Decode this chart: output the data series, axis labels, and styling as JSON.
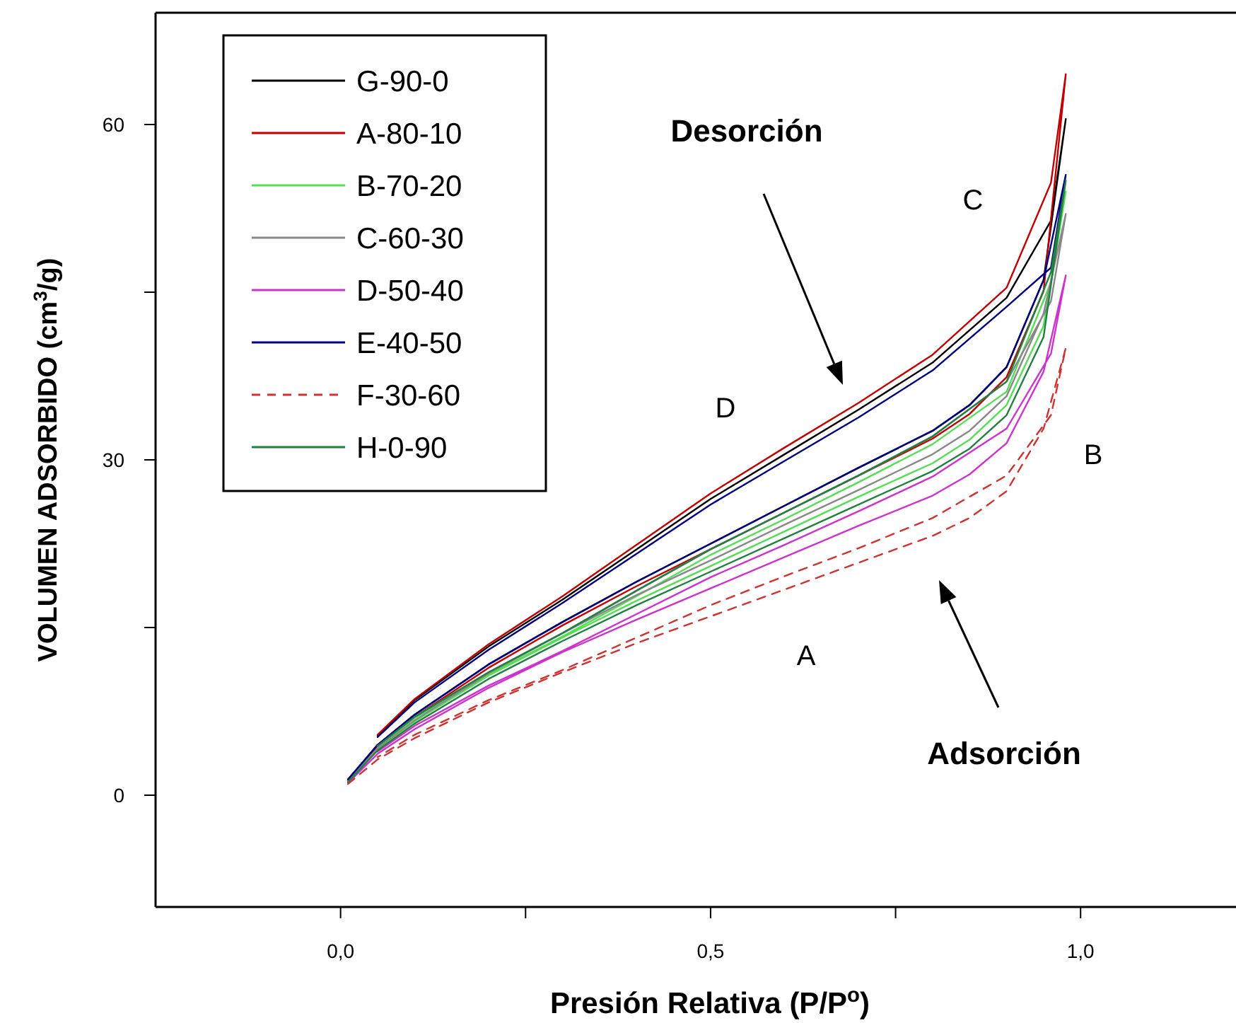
{
  "chart_data": {
    "type": "line",
    "xlabel": "Presión Relativa  (P/P$^{o}$)",
    "ylabel": "VOLUMEN ADSORBIDO (cm$^{3}$/g)",
    "xlim": [
      -0.25,
      1.21
    ],
    "ylim": [
      -10,
      70
    ],
    "xticks": [
      {
        "value": 0,
        "label": "0,0"
      },
      {
        "value": 0.25,
        "label": null
      },
      {
        "value": 0.5,
        "label": "0,5"
      },
      {
        "value": 0.75,
        "label": null
      },
      {
        "value": 1,
        "label": "1,0"
      }
    ],
    "yticks": [
      0,
      {
        "value": 15,
        "label": null
      },
      30,
      {
        "value": 45,
        "label": null
      },
      60
    ],
    "legend": "top left",
    "line_style": "solid",
    "x": [
      0.01,
      0.05,
      0.1,
      0.2,
      0.3,
      0.4,
      0.5,
      0.6,
      0.7,
      0.8,
      0.85,
      0.9,
      0.95,
      0.98,
      0.96,
      0.9,
      0.8,
      0.7,
      0.6,
      0.5,
      0.4,
      0.3,
      0.2,
      0.1,
      0.05
    ],
    "series": [
      {
        "name": "G-90-0",
        "color": "#000000",
        "values": [
          1.4,
          4.5,
          7.2,
          11.7,
          15.5,
          19.1,
          22.5,
          25.9,
          29.3,
          32.6,
          34.9,
          38.3,
          46.1,
          60.5,
          51.4,
          44.5,
          38.7,
          34.5,
          30.5,
          26.5,
          22,
          17.5,
          13.3,
          8.5,
          5.3
        ]
      },
      {
        "name": "A-80-10",
        "color": "#c00000",
        "values": [
          1.3,
          4.4,
          7,
          11.4,
          15.2,
          18.7,
          22,
          25.3,
          28.6,
          31.9,
          34.1,
          37.4,
          45.1,
          64.5,
          54.8,
          45.4,
          39.4,
          35.1,
          31.1,
          27,
          22.4,
          17.8,
          13.5,
          8.6,
          5.4
        ]
      },
      {
        "name": "B-70-20",
        "color": "#55dd55",
        "values": [
          1.2,
          4.1,
          6.6,
          10.7,
          14.1,
          17.4,
          20.5,
          23.6,
          26.7,
          29.7,
          31.8,
          34.9,
          42,
          54,
          45.9,
          36.1,
          31.4,
          28,
          24.7,
          21.5,
          17.8,
          14.2,
          10.8,
          6.9,
          4.3
        ]
      },
      {
        "name": "C-60-30",
        "color": "#888888",
        "values": [
          1.3,
          4.2,
          6.7,
          10.9,
          14.5,
          17.9,
          21,
          24.2,
          27.3,
          30.5,
          32.6,
          35.7,
          43.1,
          52,
          44.2,
          37,
          32.1,
          28.6,
          25.3,
          22,
          18.3,
          14.5,
          11,
          7,
          4.4
        ]
      },
      {
        "name": "D-50-40",
        "color": "#cc33cc",
        "values": [
          1.1,
          3.7,
          5.9,
          9.6,
          12.8,
          15.7,
          18.5,
          21.3,
          24.1,
          26.8,
          28.7,
          31.5,
          37.9,
          46.5,
          39.5,
          32.8,
          28.5,
          25.4,
          22.4,
          19.5,
          16.2,
          12.9,
          9.8,
          6.2,
          3.9
        ]
      },
      {
        "name": "E-40-50",
        "color": "#000080",
        "values": [
          1.4,
          4.5,
          7.2,
          11.7,
          15.5,
          19.1,
          22.5,
          25.9,
          29.3,
          32.6,
          34.9,
          38.3,
          46.1,
          55.5,
          47.2,
          43.7,
          38,
          33.8,
          29.9,
          26,
          21.6,
          17.2,
          13,
          8.3,
          5.2
        ]
      },
      {
        "name": "F-30-60",
        "color": "#cc3333",
        "line_style": "dashed",
        "values": [
          1,
          3.2,
          5.1,
          8.3,
          11,
          13.6,
          16,
          18.4,
          20.8,
          23.2,
          24.8,
          27.2,
          32.8,
          40,
          34,
          28.6,
          24.8,
          22.1,
          19.6,
          17,
          14.1,
          11.2,
          8.5,
          5.4,
          3.4
        ]
      },
      {
        "name": "H-0-90",
        "color": "#208040",
        "values": [
          1.2,
          4,
          6.4,
          10.4,
          13.8,
          17,
          20,
          23,
          26,
          29,
          31,
          34,
          41,
          55,
          46.8,
          37,
          32.1,
          28.6,
          25.3,
          22,
          18.3,
          14.5,
          11,
          7,
          4.4
        ]
      }
    ],
    "annotations": [
      "Desorción",
      "Adsorción",
      "A",
      "B",
      "C",
      "D"
    ]
  }
}
